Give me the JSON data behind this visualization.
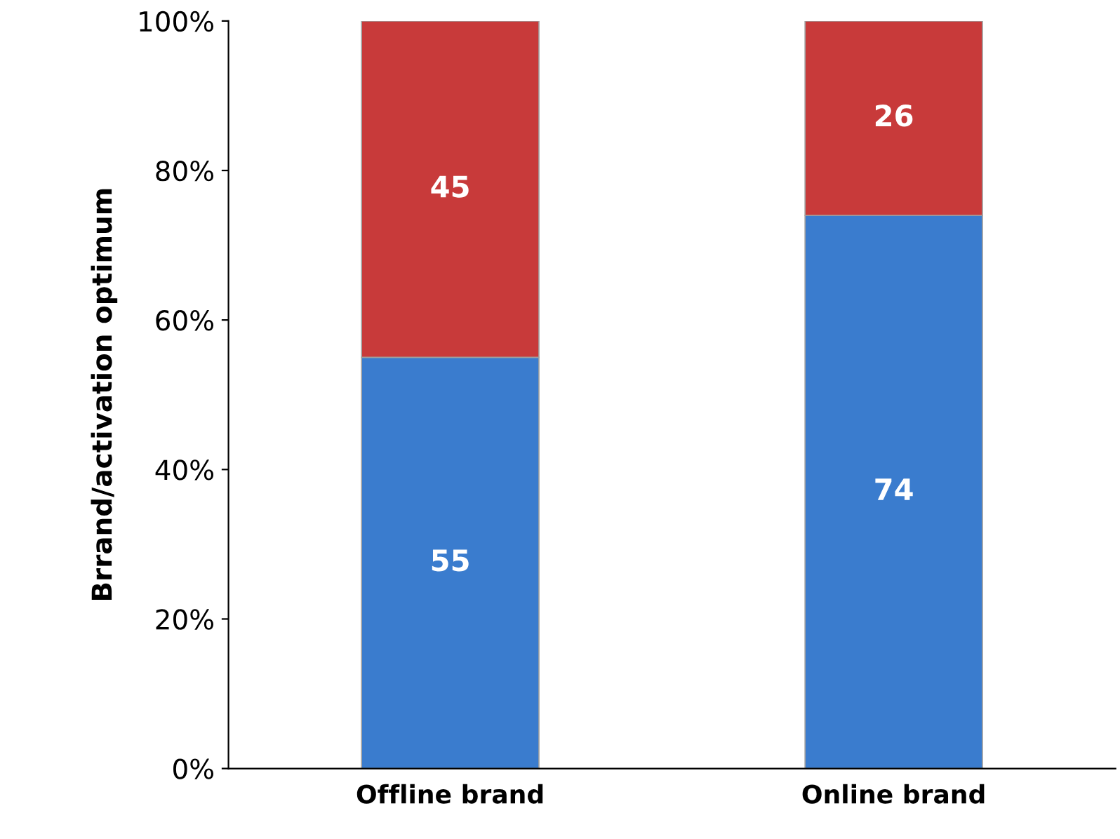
{
  "chart_data": {
    "type": "bar",
    "stacked": true,
    "ylabel": "Brrand/activation optimum",
    "categories": [
      "Offline brand",
      "Online brand"
    ],
    "series": [
      {
        "color": "#3a7cce",
        "values": [
          55,
          74
        ]
      },
      {
        "color": "#c83a3a",
        "values": [
          45,
          26
        ]
      }
    ],
    "ylim": [
      0,
      100
    ],
    "yticks": [
      {
        "value": 0,
        "label": "0%"
      },
      {
        "value": 20,
        "label": "20%"
      },
      {
        "value": 40,
        "label": "40%"
      },
      {
        "value": 60,
        "label": "60%"
      },
      {
        "value": 80,
        "label": "80%"
      },
      {
        "value": 100,
        "label": "100%"
      }
    ],
    "data_labels": true,
    "grid": false,
    "legend": false
  }
}
